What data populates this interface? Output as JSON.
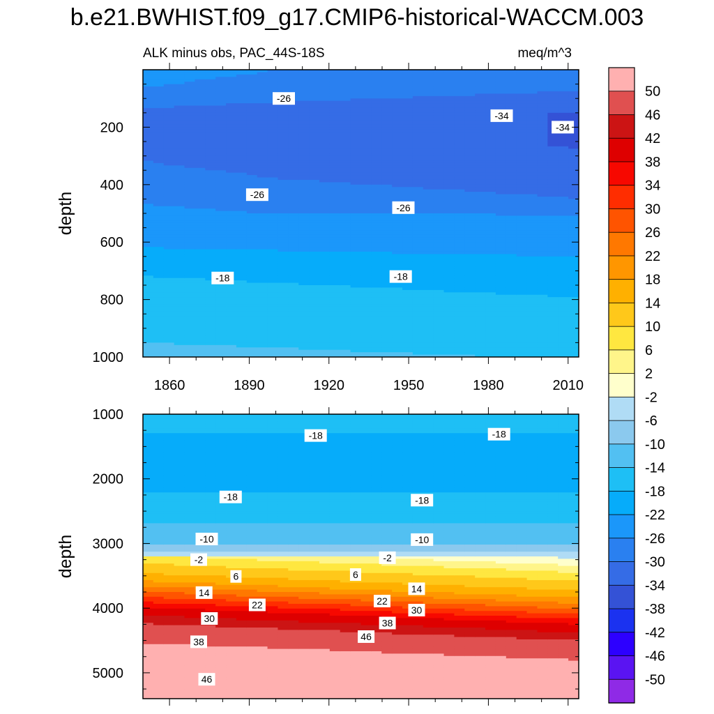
{
  "chart_data": {
    "type": "heatmap",
    "title": "b.e21.BWHIST.f09_g17.CMIP6-historical-WACCM.003",
    "units": "meq/m^3",
    "colorbar": {
      "levels": [
        -50,
        -46,
        -42,
        -38,
        -34,
        -30,
        -26,
        -22,
        -18,
        -14,
        -10,
        -6,
        -2,
        2,
        6,
        10,
        14,
        18,
        22,
        26,
        30,
        34,
        38,
        42,
        46,
        50
      ],
      "colors": [
        "#8f2ae6",
        "#5a14f2",
        "#2d00ff",
        "#1b32f0",
        "#3452d6",
        "#356ce6",
        "#2a80f0",
        "#1b97fa",
        "#06acfa",
        "#1ebff5",
        "#52c0f2",
        "#8bc9ee",
        "#b0dcf5",
        "#ffffcc",
        "#fff58a",
        "#ffe740",
        "#ffc81a",
        "#ffb000",
        "#ff9600",
        "#ff7800",
        "#ff5400",
        "#ff2d00",
        "#f70800",
        "#de0000",
        "#cc1414",
        "#e05050",
        "#ffb0b0"
      ]
    },
    "panels": [
      {
        "subtitle": "ALK minus obs, PAC_44S-18S",
        "units_label": "meq/m^3",
        "ylabel": "depth",
        "ylim": [
          0,
          1000
        ],
        "yticks": [
          200,
          400,
          600,
          800,
          1000
        ],
        "xlim": [
          1850,
          2014
        ],
        "xticks": [
          1860,
          1890,
          1920,
          1950,
          1980,
          2010
        ],
        "profile": [
          {
            "depth": 0,
            "value": -25
          },
          {
            "depth": 60,
            "value": -26
          },
          {
            "depth": 150,
            "value": -31
          },
          {
            "depth": 260,
            "value": -31
          },
          {
            "depth": 380,
            "value": -29
          },
          {
            "depth": 470,
            "value": -26
          },
          {
            "depth": 540,
            "value": -24
          },
          {
            "depth": 620,
            "value": -22
          },
          {
            "depth": 720,
            "value": -18
          },
          {
            "depth": 900,
            "value": -15
          },
          {
            "depth": 1000,
            "value": -13
          }
        ],
        "contour_labels": [
          {
            "text": "-26",
            "year": 1903,
            "depth": 100
          },
          {
            "text": "-34",
            "year": 1985,
            "depth": 160
          },
          {
            "text": "-34",
            "year": 2008,
            "depth": 200
          },
          {
            "text": "-26",
            "year": 1893,
            "depth": 435
          },
          {
            "text": "-26",
            "year": 1948,
            "depth": 480
          },
          {
            "text": "-18",
            "year": 1880,
            "depth": 725
          },
          {
            "text": "-18",
            "year": 1947,
            "depth": 720
          }
        ]
      },
      {
        "ylabel": "depth",
        "ylim": [
          1000,
          5400
        ],
        "yticks": [
          1000,
          2000,
          3000,
          4000,
          5000
        ],
        "xlim": [
          1850,
          2014
        ],
        "profile": [
          {
            "depth": 1000,
            "value": -16
          },
          {
            "depth": 1300,
            "value": -18
          },
          {
            "depth": 1800,
            "value": -20
          },
          {
            "depth": 2200,
            "value": -18
          },
          {
            "depth": 2700,
            "value": -14
          },
          {
            "depth": 3000,
            "value": -10
          },
          {
            "depth": 3230,
            "value": -2
          },
          {
            "depth": 3500,
            "value": 8
          },
          {
            "depth": 3800,
            "value": 16
          },
          {
            "depth": 4050,
            "value": 28
          },
          {
            "depth": 4250,
            "value": 38
          },
          {
            "depth": 4500,
            "value": 46
          },
          {
            "depth": 4800,
            "value": 50
          },
          {
            "depth": 5400,
            "value": 52
          }
        ],
        "contour_labels": [
          {
            "text": "-18",
            "year": 1915,
            "depth": 1330
          },
          {
            "text": "-18",
            "year": 1984,
            "depth": 1310
          },
          {
            "text": "-18",
            "year": 1883,
            "depth": 2280
          },
          {
            "text": "-18",
            "year": 1955,
            "depth": 2330
          },
          {
            "text": "-10",
            "year": 1874,
            "depth": 2930
          },
          {
            "text": "-10",
            "year": 1955,
            "depth": 2940
          },
          {
            "text": "-2",
            "year": 1871,
            "depth": 3250
          },
          {
            "text": "-2",
            "year": 1942,
            "depth": 3220
          },
          {
            "text": "6",
            "year": 1885,
            "depth": 3510
          },
          {
            "text": "6",
            "year": 1930,
            "depth": 3480
          },
          {
            "text": "14",
            "year": 1873,
            "depth": 3760
          },
          {
            "text": "14",
            "year": 1953,
            "depth": 3700
          },
          {
            "text": "22",
            "year": 1893,
            "depth": 3950
          },
          {
            "text": "22",
            "year": 1940,
            "depth": 3890
          },
          {
            "text": "30",
            "year": 1875,
            "depth": 4160
          },
          {
            "text": "30",
            "year": 1953,
            "depth": 4030
          },
          {
            "text": "38",
            "year": 1871,
            "depth": 4520
          },
          {
            "text": "38",
            "year": 1942,
            "depth": 4230
          },
          {
            "text": "46",
            "year": 1934,
            "depth": 4440
          },
          {
            "text": "46",
            "year": 1874,
            "depth": 5100
          }
        ]
      }
    ]
  }
}
